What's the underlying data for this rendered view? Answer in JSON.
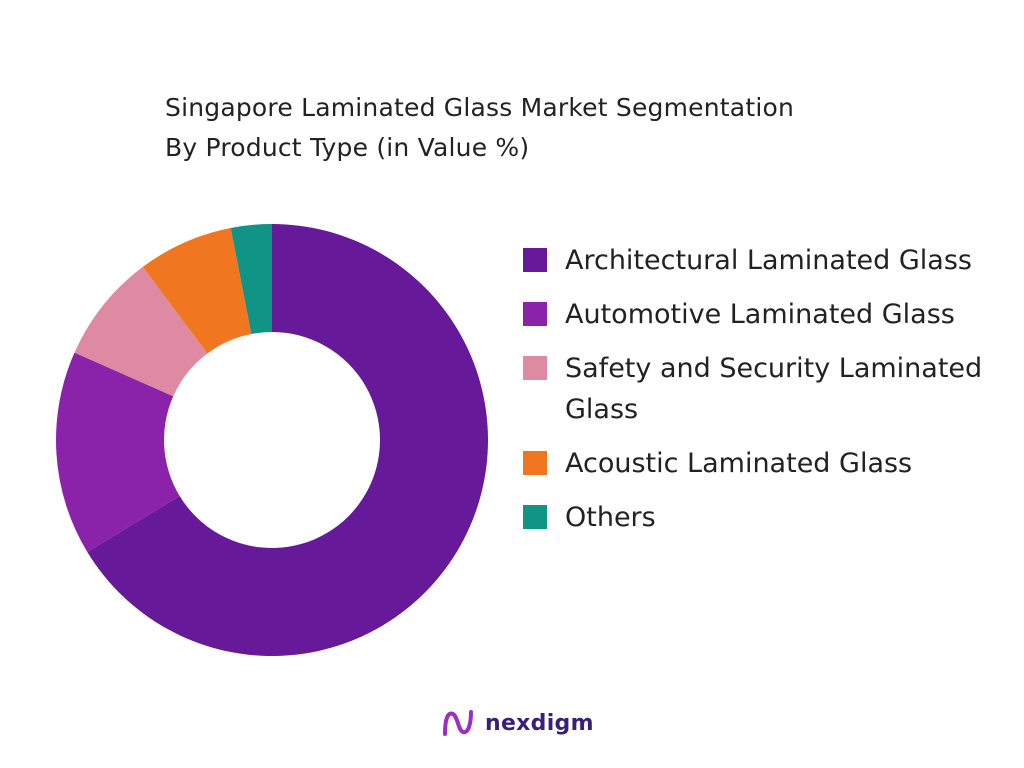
{
  "title_lines": [
    "Singapore Laminated Glass Market Segmentation",
    "By Product Type  (in Value %)"
  ],
  "chart_data": {
    "type": "pie",
    "donut": true,
    "title": "Singapore Laminated Glass Market Segmentation By Product Type  (in Value %)",
    "categories": [
      "Architectural Laminated Glass",
      "Automotive Laminated Glass",
      "Safety and Security Laminated Glass",
      "Acoustic Laminated Glass",
      "Others"
    ],
    "values": [
      65,
      15,
      8,
      7,
      3
    ],
    "colors": [
      "#661a99",
      "#8a22aa",
      "#de8aa2",
      "#f0761f",
      "#0f9486"
    ],
    "legend_position": "right"
  },
  "logo": {
    "text": "nexdigm",
    "mark_color": "#9b2fc4"
  }
}
